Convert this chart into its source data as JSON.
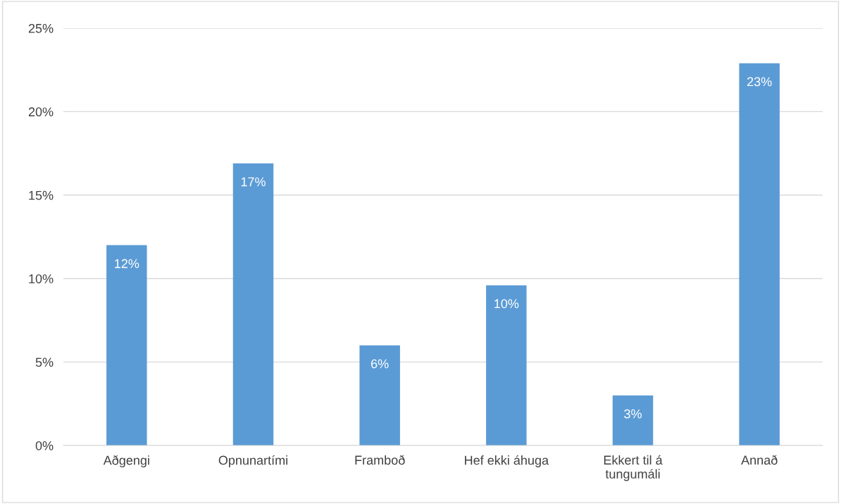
{
  "chart_data": {
    "type": "bar",
    "categories": [
      "Aðgengi",
      "Opnunartími",
      "Framboð",
      "Hef ekki áhuga",
      "Ekkert til á\ntungumáli",
      "Annað"
    ],
    "values": [
      12,
      16.9,
      6,
      9.6,
      3,
      22.9
    ],
    "value_labels": [
      "12%",
      "17%",
      "6%",
      "10%",
      "3%",
      "23%"
    ],
    "color": "#5b9bd5",
    "ylim": [
      0,
      25
    ],
    "yticks": [
      {
        "value": 0,
        "label": "0%"
      },
      {
        "value": 5,
        "label": "5%"
      },
      {
        "value": 10,
        "label": "10%"
      },
      {
        "value": 15,
        "label": "15%"
      },
      {
        "value": 20,
        "label": "20%"
      },
      {
        "value": 25,
        "label": "25%"
      }
    ],
    "grid": "y",
    "legend": false
  }
}
